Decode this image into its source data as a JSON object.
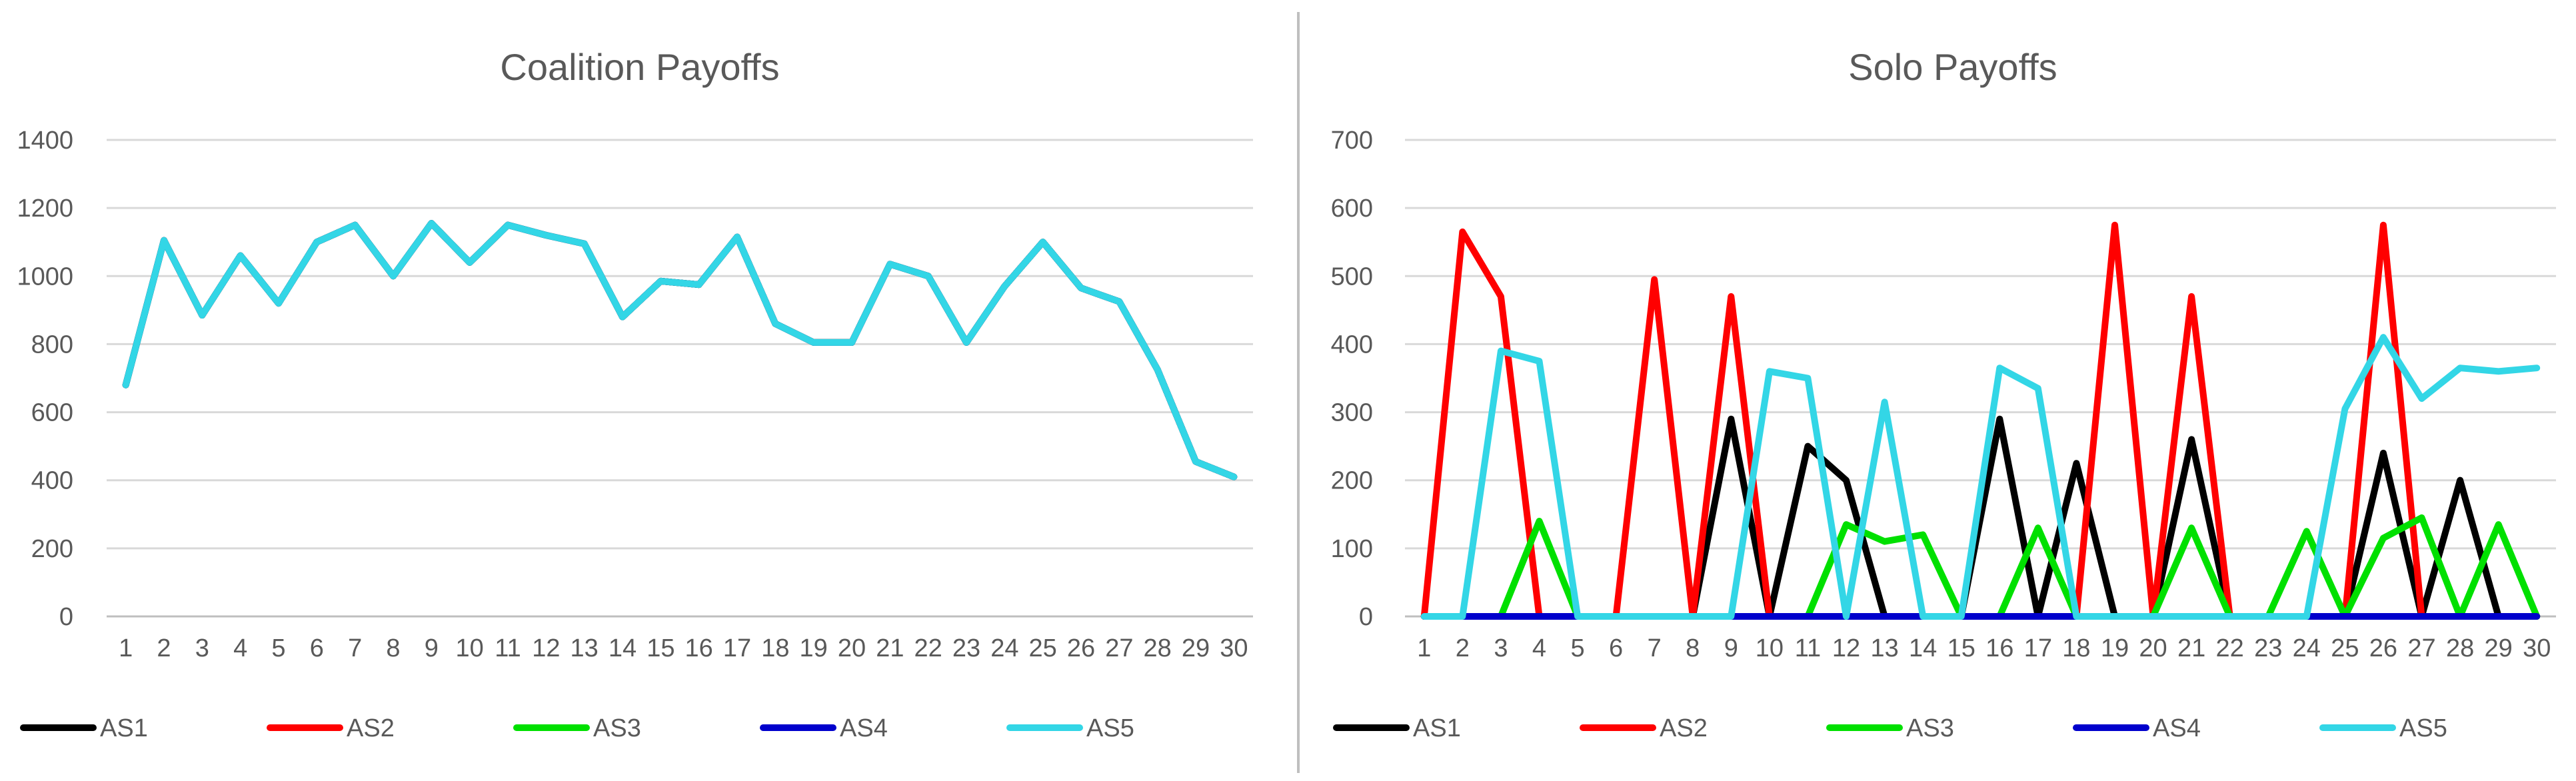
{
  "chart_data": [
    {
      "type": "line",
      "title": "Coalition Payoffs",
      "xlabel": "",
      "ylabel": "",
      "categories": [
        "1",
        "2",
        "3",
        "4",
        "5",
        "6",
        "7",
        "8",
        "9",
        "10",
        "11",
        "12",
        "13",
        "14",
        "15",
        "16",
        "17",
        "18",
        "19",
        "20",
        "21",
        "22",
        "23",
        "24",
        "25",
        "26",
        "27",
        "28",
        "29",
        "30"
      ],
      "ylim": [
        0,
        1400
      ],
      "yticks": [
        "0",
        "200",
        "400",
        "600",
        "800",
        "1000",
        "1200",
        "1400"
      ],
      "grid": true,
      "legend_position": "bottom",
      "series": [
        {
          "name": "AS1",
          "color": "#000000",
          "values": [
            680,
            1105,
            885,
            1060,
            920,
            1100,
            1150,
            1000,
            1155,
            1040,
            1150,
            1120,
            1095,
            880,
            985,
            975,
            1115,
            860,
            805,
            805,
            1035,
            1000,
            805,
            970,
            1100,
            965,
            925,
            725,
            455,
            410
          ]
        },
        {
          "name": "AS2",
          "color": "#ff0000",
          "values": [
            680,
            1105,
            885,
            1060,
            920,
            1100,
            1150,
            1000,
            1155,
            1040,
            1150,
            1120,
            1095,
            880,
            985,
            975,
            1115,
            860,
            805,
            805,
            1035,
            1000,
            805,
            970,
            1100,
            965,
            925,
            725,
            455,
            410
          ]
        },
        {
          "name": "AS3",
          "color": "#00e000",
          "values": [
            680,
            1105,
            885,
            1060,
            920,
            1100,
            1150,
            1000,
            1155,
            1040,
            1150,
            1120,
            1095,
            880,
            985,
            975,
            1115,
            860,
            805,
            805,
            1035,
            1000,
            805,
            970,
            1100,
            965,
            925,
            725,
            455,
            410
          ]
        },
        {
          "name": "AS4",
          "color": "#0000cc",
          "values": [
            680,
            1105,
            885,
            1060,
            920,
            1100,
            1150,
            1000,
            1155,
            1040,
            1150,
            1120,
            1095,
            880,
            985,
            975,
            1115,
            860,
            805,
            805,
            1035,
            1000,
            805,
            970,
            1100,
            965,
            925,
            725,
            455,
            410
          ]
        },
        {
          "name": "AS5",
          "color": "#33d6e6",
          "values": [
            680,
            1105,
            885,
            1060,
            920,
            1100,
            1150,
            1000,
            1155,
            1040,
            1150,
            1120,
            1095,
            880,
            985,
            975,
            1115,
            860,
            805,
            805,
            1035,
            1000,
            805,
            970,
            1100,
            965,
            925,
            725,
            455,
            410
          ]
        }
      ]
    },
    {
      "type": "line",
      "title": "Solo Payoffs",
      "xlabel": "",
      "ylabel": "",
      "categories": [
        "1",
        "2",
        "3",
        "4",
        "5",
        "6",
        "7",
        "8",
        "9",
        "10",
        "11",
        "12",
        "13",
        "14",
        "15",
        "16",
        "17",
        "18",
        "19",
        "20",
        "21",
        "22",
        "23",
        "24",
        "25",
        "26",
        "27",
        "28",
        "29",
        "30"
      ],
      "ylim": [
        0,
        700
      ],
      "yticks": [
        "0",
        "100",
        "200",
        "300",
        "400",
        "500",
        "600",
        "700"
      ],
      "grid": true,
      "legend_position": "bottom",
      "series": [
        {
          "name": "AS1",
          "color": "#000000",
          "values": [
            0,
            0,
            0,
            0,
            0,
            0,
            0,
            0,
            290,
            0,
            250,
            200,
            0,
            0,
            0,
            290,
            0,
            225,
            0,
            0,
            260,
            0,
            0,
            0,
            0,
            240,
            0,
            200,
            0,
            0
          ]
        },
        {
          "name": "AS2",
          "color": "#ff0000",
          "values": [
            0,
            565,
            470,
            0,
            0,
            0,
            495,
            0,
            470,
            0,
            0,
            0,
            0,
            0,
            0,
            0,
            0,
            0,
            575,
            0,
            470,
            0,
            0,
            0,
            0,
            575,
            0,
            0,
            0,
            0
          ]
        },
        {
          "name": "AS3",
          "color": "#00e000",
          "values": [
            0,
            0,
            0,
            140,
            0,
            0,
            0,
            0,
            0,
            0,
            0,
            135,
            110,
            120,
            0,
            0,
            130,
            0,
            0,
            0,
            130,
            0,
            0,
            125,
            0,
            115,
            145,
            0,
            135,
            0
          ]
        },
        {
          "name": "AS4",
          "color": "#0000cc",
          "values": [
            0,
            0,
            0,
            0,
            0,
            0,
            0,
            0,
            0,
            0,
            0,
            0,
            0,
            0,
            0,
            0,
            0,
            0,
            0,
            0,
            0,
            0,
            0,
            0,
            0,
            0,
            0,
            0,
            0,
            0
          ]
        },
        {
          "name": "AS5",
          "color": "#33d6e6",
          "values": [
            0,
            0,
            390,
            375,
            0,
            0,
            0,
            0,
            0,
            360,
            350,
            0,
            315,
            0,
            0,
            365,
            335,
            0,
            0,
            0,
            0,
            0,
            0,
            0,
            305,
            410,
            320,
            365,
            360,
            365
          ]
        }
      ]
    }
  ]
}
